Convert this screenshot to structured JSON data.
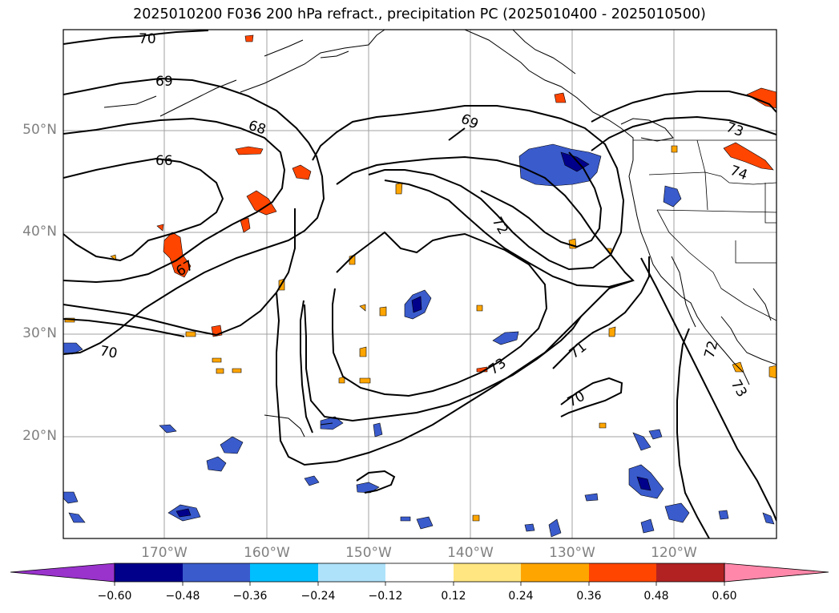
{
  "title": "2025010200 F036 200 hPa refract., precipitation PC (2025010400 - 2025010500)",
  "lat_labels": [
    "50°N",
    "40°N",
    "30°N",
    "20°N"
  ],
  "lon_labels": [
    "170°W",
    "160°W",
    "150°W",
    "140°W",
    "130°W",
    "120°W"
  ],
  "contour_labels": [
    "70",
    "69",
    "68",
    "66",
    "67",
    "70",
    "69",
    "72",
    "73",
    "71",
    "70",
    "73",
    "74",
    "72",
    "73"
  ],
  "colorbar": {
    "ticks": [
      "−0.60",
      "−0.48",
      "−0.36",
      "−0.24",
      "−0.12",
      "0.12",
      "0.24",
      "0.36",
      "0.48",
      "0.60"
    ],
    "colors": [
      "#9933cc",
      "#00008b",
      "#3a5bcc",
      "#00bfff",
      "#aee2fa",
      "#ffffff",
      "#ffe680",
      "#ffa500",
      "#ff4500",
      "#b22222",
      "#ff88aa"
    ]
  },
  "colors": {
    "contour": "#000000",
    "grid": "#a0a0a0",
    "coast": "#000000"
  }
}
